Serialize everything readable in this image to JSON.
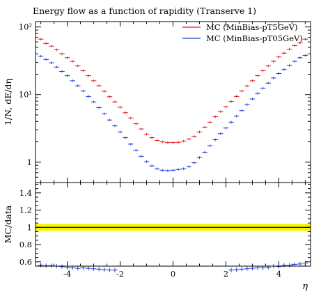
{
  "chart_data": {
    "type": "scatter",
    "title": "Energy flow as a function of rapidity (Transerve 1)",
    "xlabel": "η",
    "main_panel": {
      "ylabel": "1/N, dE/dη",
      "yscale": "log",
      "ylim": [
        0.5,
        120
      ],
      "yticks": [
        {
          "value": 1,
          "label": "1"
        },
        {
          "value": 10,
          "label": "10¹"
        },
        {
          "value": 100,
          "label": "10²"
        }
      ]
    },
    "ratio_panel": {
      "ylabel": "MC/data",
      "ylim": [
        0.55,
        1.52
      ],
      "yticks": [
        {
          "value": 0.6,
          "label": "0.6"
        },
        {
          "value": 0.8,
          "label": "0.8"
        },
        {
          "value": 1.0,
          "label": "1"
        },
        {
          "value": 1.2,
          "label": "1.2"
        },
        {
          "value": 1.4,
          "label": "1.4"
        }
      ],
      "reference_line": 1.0,
      "band": [
        0.96,
        1.04
      ]
    },
    "xlim": [
      -5.2,
      5.2
    ],
    "xticks": [
      {
        "value": -4,
        "label": "-4"
      },
      {
        "value": -2,
        "label": "-2"
      },
      {
        "value": 0,
        "label": "0"
      },
      {
        "value": 2,
        "label": "2"
      },
      {
        "value": 4,
        "label": "4"
      }
    ],
    "legend_position": "top-right",
    "x": [
      -5.0,
      -4.8,
      -4.6,
      -4.4,
      -4.2,
      -4.0,
      -3.8,
      -3.6,
      -3.4,
      -3.2,
      -3.0,
      -2.8,
      -2.6,
      -2.4,
      -2.2,
      -2.0,
      -1.8,
      -1.6,
      -1.4,
      -1.2,
      -1.0,
      -0.8,
      -0.6,
      -0.4,
      -0.2,
      0.0,
      0.2,
      0.4,
      0.6,
      0.8,
      1.0,
      1.2,
      1.4,
      1.6,
      1.8,
      2.0,
      2.2,
      2.4,
      2.6,
      2.8,
      3.0,
      3.2,
      3.4,
      3.6,
      3.8,
      4.0,
      4.2,
      4.4,
      4.6,
      4.8,
      5.0
    ],
    "series": [
      {
        "name": "MC (MinBias-pT5GeV)",
        "color": "#e31a1c",
        "values": [
          66,
          57,
          52,
          46,
          40,
          35,
          31,
          26.5,
          22.5,
          19,
          16,
          13.5,
          11.2,
          9.3,
          7.8,
          6.5,
          5.4,
          4.5,
          3.7,
          3.1,
          2.6,
          2.3,
          2.1,
          2.0,
          1.95,
          1.95,
          1.97,
          2.05,
          2.2,
          2.4,
          2.8,
          3.3,
          3.9,
          4.7,
          5.6,
          6.6,
          7.9,
          9.4,
          11.3,
          13.4,
          16,
          19,
          22.5,
          26.5,
          31,
          36,
          41,
          47,
          53,
          58,
          66
        ]
      },
      {
        "name": "MC (MinBias-pT05GeV)",
        "color": "#1f3fdb",
        "values": [
          37,
          33,
          29.5,
          25.5,
          22,
          19,
          16,
          13.5,
          11.3,
          9.4,
          7.8,
          6.4,
          5.2,
          4.2,
          3.45,
          2.8,
          2.3,
          1.85,
          1.5,
          1.22,
          1.02,
          0.88,
          0.8,
          0.76,
          0.75,
          0.76,
          0.78,
          0.8,
          0.86,
          0.98,
          1.17,
          1.4,
          1.75,
          2.15,
          2.65,
          3.2,
          3.9,
          4.8,
          5.8,
          7.1,
          8.6,
          10.4,
          12.4,
          14.8,
          17.6,
          20.5,
          23.5,
          27,
          31,
          35,
          38
        ]
      }
    ],
    "ratio_points": {
      "x": [
        -5.0,
        -4.8,
        -4.6,
        -4.4,
        -4.2,
        -4.0,
        -3.8,
        -3.6,
        -3.4,
        -3.2,
        -3.0,
        -2.8,
        -2.6,
        -2.4,
        -2.2,
        2.2,
        2.4,
        2.6,
        2.8,
        3.0,
        3.2,
        3.4,
        3.6,
        3.8,
        4.0,
        4.2,
        4.4,
        4.6,
        4.8,
        5.0
      ],
      "values": [
        0.56,
        0.555,
        0.555,
        0.55,
        0.545,
        0.535,
        0.53,
        0.525,
        0.53,
        0.525,
        0.52,
        0.515,
        0.51,
        0.505,
        0.505,
        0.505,
        0.51,
        0.515,
        0.52,
        0.525,
        0.53,
        0.53,
        0.535,
        0.55,
        0.545,
        0.56,
        0.56,
        0.57,
        0.575,
        0.585
      ]
    }
  }
}
